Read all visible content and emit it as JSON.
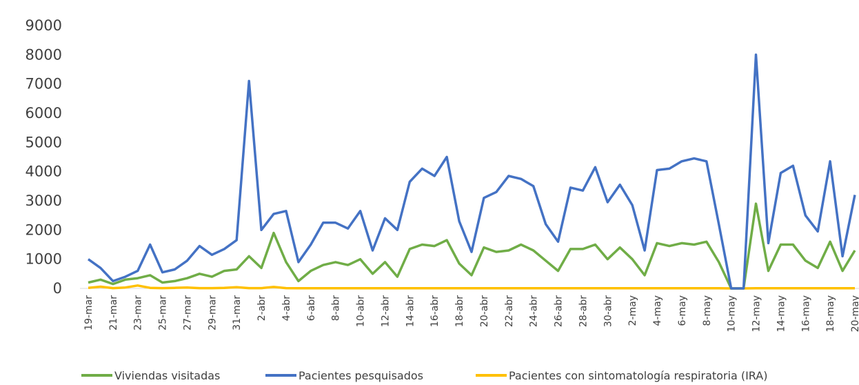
{
  "chart_data": {
    "type": "line",
    "categories": [
      "19-mar",
      null,
      "21-mar",
      null,
      "23-mar",
      null,
      "25-mar",
      null,
      "27-mar",
      null,
      "29-mar",
      null,
      "31-mar",
      null,
      "2-abr",
      null,
      "4-abr",
      null,
      "6-abr",
      null,
      "8-abr",
      null,
      "10-abr",
      null,
      "12-abr",
      null,
      "14-abr",
      null,
      "16-abr",
      null,
      "18-abr",
      null,
      "20-abr",
      null,
      "22-abr",
      null,
      "24-abr",
      null,
      "26-abr",
      null,
      "28-abr",
      null,
      "30-abr",
      null,
      "2-may",
      null,
      "4-may",
      null,
      "6-may",
      null,
      "8-may",
      null,
      "10-may",
      null,
      "12-may",
      null,
      "14-may",
      null,
      "16-may",
      null,
      "18-may",
      null,
      "20-may"
    ],
    "series": [
      {
        "name": "Viviendas visitadas",
        "color": "#70ad47",
        "values": [
          200,
          300,
          150,
          300,
          350,
          450,
          200,
          250,
          350,
          500,
          400,
          600,
          650,
          1100,
          700,
          1900,
          900,
          250,
          600,
          800,
          900,
          800,
          1000,
          500,
          900,
          400,
          1350,
          1500,
          1450,
          1650,
          850,
          450,
          1400,
          1250,
          1300,
          1500,
          1300,
          950,
          600,
          1350,
          1350,
          1500,
          1000,
          1400,
          1000,
          450,
          1550,
          1450,
          1550,
          1500,
          1600,
          900,
          0,
          0,
          2900,
          600,
          1500,
          1500,
          950,
          700,
          1600,
          600,
          1300
        ]
      },
      {
        "name": "Pacientes pesquisados",
        "color": "#4472c4",
        "values": [
          1000,
          700,
          250,
          400,
          600,
          1500,
          550,
          650,
          950,
          1450,
          1150,
          1350,
          1650,
          7100,
          2000,
          2550,
          2650,
          900,
          1500,
          2250,
          2250,
          2050,
          2650,
          1300,
          2400,
          2000,
          3650,
          4100,
          3850,
          4500,
          2300,
          1250,
          3100,
          3300,
          3850,
          3750,
          3500,
          2200,
          1600,
          3450,
          3350,
          4150,
          2950,
          3550,
          2850,
          1300,
          4050,
          4100,
          4350,
          4450,
          4350,
          2200,
          0,
          0,
          8000,
          1550,
          3950,
          4200,
          2500,
          1950,
          4350,
          1100,
          3200
        ]
      },
      {
        "name": "Pacientes con sintomatología respiratoria (IRA)",
        "color": "#ffc000",
        "values": [
          20,
          60,
          10,
          30,
          100,
          20,
          10,
          20,
          30,
          10,
          10,
          20,
          40,
          10,
          10,
          50,
          10,
          5,
          5,
          5,
          5,
          5,
          5,
          5,
          5,
          5,
          5,
          5,
          5,
          5,
          5,
          5,
          5,
          5,
          5,
          5,
          5,
          5,
          5,
          5,
          5,
          5,
          5,
          5,
          5,
          5,
          5,
          5,
          5,
          5,
          5,
          5,
          0,
          0,
          5,
          5,
          5,
          5,
          5,
          5,
          5,
          5,
          5
        ]
      }
    ],
    "ylim": [
      0,
      9000
    ],
    "yticks": [
      0,
      1000,
      2000,
      3000,
      4000,
      5000,
      6000,
      7000,
      8000,
      9000
    ]
  }
}
